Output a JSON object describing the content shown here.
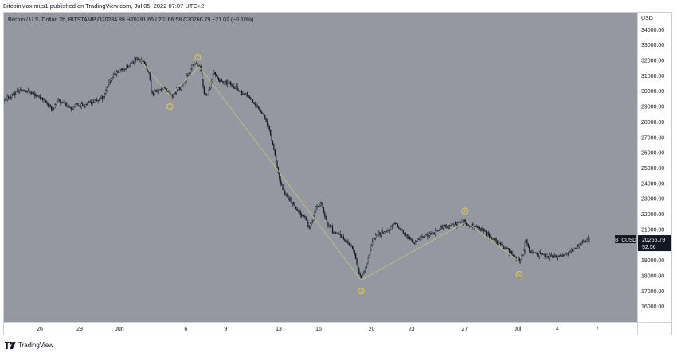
{
  "header": {
    "publisher_text": "BitcoinMaximus1 published on TradingView.com, Jul 05, 2022 07:07 UTC+2"
  },
  "footer": {
    "brand": "TradingView",
    "logo_icon": "tradingview-logo-icon"
  },
  "colors": {
    "plot_bg": "#9598a1",
    "candle": "#131722",
    "wave_line": "#c8c07a",
    "wave_label": "#f0d23a",
    "price_tag_bg": "#131722",
    "axis_text": "#131722"
  },
  "chart_data": {
    "type": "candlestick",
    "legend": {
      "symbol": "Bitcoin / U.S. Dollar, 2h, BITSTAMP",
      "o_label": "O",
      "o_value": "20284.89",
      "h_label": "H",
      "h_value": "20291.65",
      "l_label": "L",
      "l_value": "20166.58",
      "c_label": "C",
      "c_value": "20266.79",
      "change": "−21.02 (−0.10%)"
    },
    "currency_label": "USD",
    "y_ticks": [
      "34000.00",
      "33000.00",
      "32000.00",
      "31000.00",
      "30000.00",
      "29000.00",
      "28000.00",
      "27000.00",
      "26000.00",
      "25000.00",
      "24000.00",
      "23000.00",
      "22000.00",
      "21000.00",
      "20000.00",
      "19000.00",
      "18000.00",
      "17000.00",
      "16000.00"
    ],
    "ylim": [
      15000,
      35100
    ],
    "x_ticks": [
      {
        "day": 0,
        "label": "26"
      },
      {
        "day": 3,
        "label": "29"
      },
      {
        "day": 6,
        "label": "Jun"
      },
      {
        "day": 11,
        "label": "6"
      },
      {
        "day": 14,
        "label": "9"
      },
      {
        "day": 18,
        "label": "13"
      },
      {
        "day": 21,
        "label": "16"
      },
      {
        "day": 25,
        "label": "20"
      },
      {
        "day": 28,
        "label": "23"
      },
      {
        "day": 32,
        "label": "27"
      },
      {
        "day": 36,
        "label": "Jul"
      },
      {
        "day": 39,
        "label": "4"
      },
      {
        "day": 42,
        "label": "7"
      }
    ],
    "x_range_days": [
      -2.7,
      45.0
    ],
    "price_path": [
      [
        -2.7,
        29300
      ],
      [
        -2.2,
        29700
      ],
      [
        -1.7,
        30000
      ],
      [
        -1.2,
        30100
      ],
      [
        -0.6,
        29900
      ],
      [
        -0.2,
        29700
      ],
      [
        0.3,
        29500
      ],
      [
        0.9,
        28800
      ],
      [
        1.4,
        29400
      ],
      [
        1.9,
        29200
      ],
      [
        2.4,
        28900
      ],
      [
        2.8,
        29100
      ],
      [
        3.3,
        29100
      ],
      [
        3.8,
        29300
      ],
      [
        4.3,
        29400
      ],
      [
        4.8,
        29700
      ],
      [
        5.2,
        30600
      ],
      [
        5.6,
        31100
      ],
      [
        6.1,
        31400
      ],
      [
        6.7,
        31600
      ],
      [
        7.2,
        32100
      ],
      [
        7.7,
        32000
      ],
      [
        8.2,
        31300
      ],
      [
        8.4,
        29900
      ],
      [
        8.9,
        30000
      ],
      [
        9.4,
        30200
      ],
      [
        9.9,
        29700
      ],
      [
        10.5,
        30200
      ],
      [
        11.0,
        30700
      ],
      [
        11.4,
        31600
      ],
      [
        11.7,
        31800
      ],
      [
        12.1,
        31500
      ],
      [
        12.4,
        29700
      ],
      [
        12.7,
        29900
      ],
      [
        13.1,
        31300
      ],
      [
        13.4,
        30800
      ],
      [
        13.8,
        30500
      ],
      [
        14.3,
        30500
      ],
      [
        14.8,
        30200
      ],
      [
        15.3,
        29800
      ],
      [
        15.8,
        29600
      ],
      [
        16.3,
        29000
      ],
      [
        16.8,
        28600
      ],
      [
        17.3,
        27500
      ],
      [
        17.7,
        26000
      ],
      [
        18.0,
        24400
      ],
      [
        18.4,
        23400
      ],
      [
        18.9,
        22900
      ],
      [
        19.3,
        22300
      ],
      [
        19.8,
        22000
      ],
      [
        20.3,
        21100
      ],
      [
        20.8,
        22400
      ],
      [
        21.2,
        22700
      ],
      [
        21.6,
        21500
      ],
      [
        22.1,
        20900
      ],
      [
        22.6,
        20600
      ],
      [
        23.1,
        20200
      ],
      [
        23.6,
        19700
      ],
      [
        24.0,
        18400
      ],
      [
        24.2,
        17800
      ],
      [
        24.6,
        18600
      ],
      [
        24.9,
        19800
      ],
      [
        25.2,
        20500
      ],
      [
        25.7,
        20800
      ],
      [
        26.2,
        20900
      ],
      [
        26.8,
        21400
      ],
      [
        27.3,
        20900
      ],
      [
        27.8,
        20400
      ],
      [
        28.2,
        20100
      ],
      [
        28.7,
        20500
      ],
      [
        29.2,
        20600
      ],
      [
        29.8,
        20800
      ],
      [
        30.3,
        21200
      ],
      [
        30.9,
        21200
      ],
      [
        31.4,
        21400
      ],
      [
        31.9,
        21600
      ],
      [
        32.2,
        21300
      ],
      [
        32.7,
        21200
      ],
      [
        33.3,
        21000
      ],
      [
        33.8,
        20600
      ],
      [
        34.3,
        20300
      ],
      [
        34.9,
        19900
      ],
      [
        35.4,
        19600
      ],
      [
        35.8,
        19200
      ],
      [
        36.1,
        19000
      ],
      [
        36.4,
        19300
      ],
      [
        36.6,
        20500
      ],
      [
        36.9,
        19500
      ],
      [
        37.5,
        19400
      ],
      [
        38.1,
        19300
      ],
      [
        38.7,
        19200
      ],
      [
        39.3,
        19300
      ],
      [
        39.8,
        19500
      ],
      [
        40.3,
        19800
      ],
      [
        40.7,
        20100
      ],
      [
        41.1,
        20300
      ],
      [
        41.4,
        20267
      ]
    ],
    "wave_path": [
      [
        7.6,
        32000
      ],
      [
        9.8,
        29700
      ],
      [
        12.0,
        31600
      ],
      [
        24.2,
        17700
      ],
      [
        32.1,
        21500
      ],
      [
        36.0,
        19000
      ]
    ],
    "wave_labels": [
      {
        "x": 9.8,
        "y": 29000,
        "label": "1"
      },
      {
        "x": 11.9,
        "y": 32200,
        "label": "2"
      },
      {
        "x": 24.2,
        "y": 17000,
        "label": "3"
      },
      {
        "x": 32.0,
        "y": 22200,
        "label": "4"
      },
      {
        "x": 36.1,
        "y": 18100,
        "label": "5"
      }
    ],
    "last_price": {
      "symbol": "BTCUSD",
      "value": "20266.79",
      "countdown": "52:56",
      "price": 20266.79
    }
  }
}
